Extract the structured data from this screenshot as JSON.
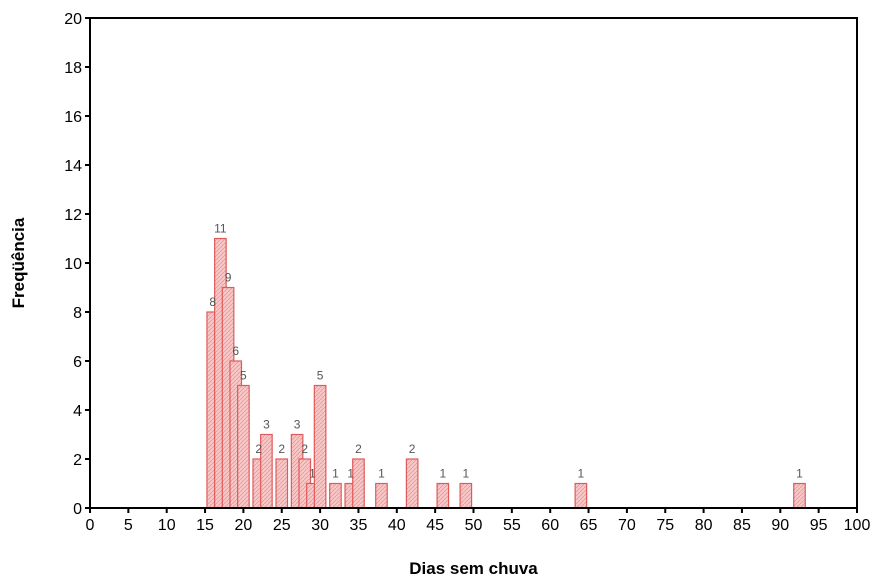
{
  "chart_data": {
    "type": "bar",
    "xlabel": "Dias sem chuva",
    "ylabel": "Freqüência",
    "xlim": [
      0,
      100
    ],
    "ylim": [
      0,
      20
    ],
    "x_ticks": [
      0,
      5,
      10,
      15,
      20,
      25,
      30,
      35,
      40,
      45,
      50,
      55,
      60,
      65,
      70,
      75,
      80,
      85,
      90,
      95,
      100
    ],
    "y_ticks": [
      0,
      2,
      4,
      6,
      8,
      10,
      12,
      14,
      16,
      18,
      20
    ],
    "bar_width": 1.5,
    "grid": false,
    "colors": {
      "bar_fill": "#f7c6c6",
      "bar_stroke": "#e05a5a",
      "axis": "#000000"
    },
    "bars": [
      {
        "x": 16,
        "value": 8,
        "label": "8"
      },
      {
        "x": 17,
        "value": 11,
        "label": "11"
      },
      {
        "x": 18,
        "value": 9,
        "label": "9"
      },
      {
        "x": 19,
        "value": 6,
        "label": "6"
      },
      {
        "x": 20,
        "value": 5,
        "label": "5"
      },
      {
        "x": 22,
        "value": 2,
        "label": "2"
      },
      {
        "x": 23,
        "value": 3,
        "label": "3"
      },
      {
        "x": 25,
        "value": 2,
        "label": "2"
      },
      {
        "x": 27,
        "value": 3,
        "label": "3"
      },
      {
        "x": 28,
        "value": 2,
        "label": "2"
      },
      {
        "x": 29,
        "value": 1,
        "label": "1"
      },
      {
        "x": 30,
        "value": 5,
        "label": "5"
      },
      {
        "x": 32,
        "value": 1,
        "label": "1"
      },
      {
        "x": 34,
        "value": 1,
        "label": "1"
      },
      {
        "x": 35,
        "value": 2,
        "label": "2"
      },
      {
        "x": 38,
        "value": 1,
        "label": "1"
      },
      {
        "x": 42,
        "value": 2,
        "label": "2"
      },
      {
        "x": 46,
        "value": 1,
        "label": "1"
      },
      {
        "x": 49,
        "value": 1,
        "label": "1"
      },
      {
        "x": 64,
        "value": 1,
        "label": "1"
      },
      {
        "x": 92.5,
        "value": 1,
        "label": "1"
      }
    ]
  }
}
